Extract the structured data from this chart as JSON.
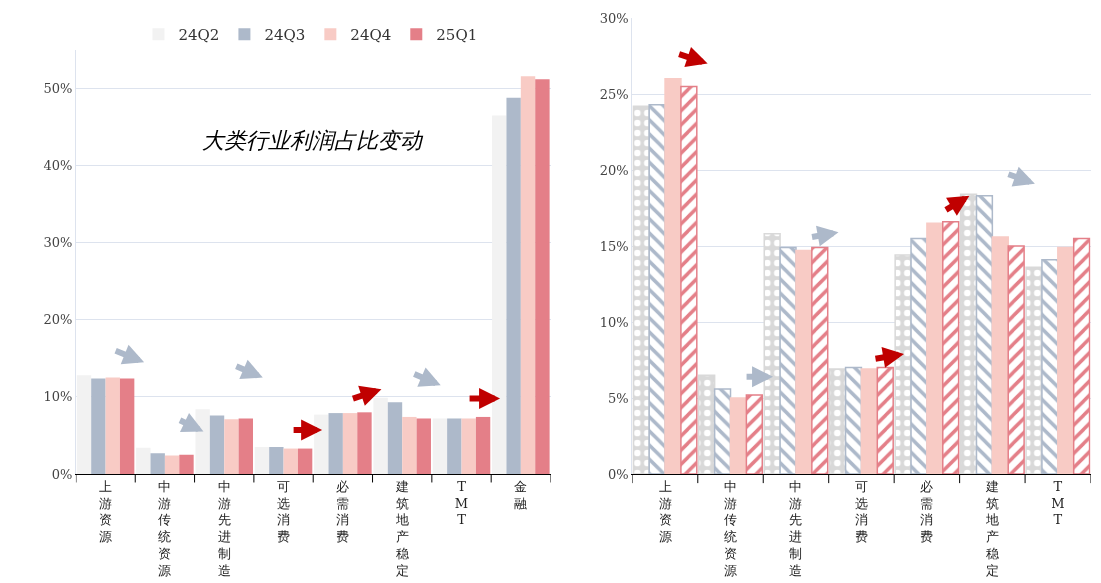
{
  "chart_data": [
    {
      "type": "bar",
      "title": "大类行业利润占比变动",
      "categories": [
        "上游资源",
        "中游传统资源",
        "中游先进制造",
        "可选消费",
        "必需消费",
        "建筑地产稳定",
        "TMT",
        "金融"
      ],
      "series": [
        {
          "name": "24Q2",
          "color": "#f2f2f2",
          "values": [
            12.8,
            3.4,
            8.4,
            3.5,
            7.7,
            9.9,
            7.2,
            46.5
          ]
        },
        {
          "name": "24Q3",
          "color": "#adb9ca",
          "values": [
            12.4,
            2.7,
            7.6,
            3.5,
            7.9,
            9.3,
            7.2,
            48.8
          ]
        },
        {
          "name": "24Q4",
          "color": "#f8cbc5",
          "values": [
            12.5,
            2.4,
            7.1,
            3.3,
            7.9,
            7.4,
            7.2,
            51.6
          ]
        },
        {
          "name": "25Q1",
          "color": "#e47f88",
          "values": [
            12.4,
            2.5,
            7.2,
            3.3,
            8.0,
            7.2,
            7.4,
            51.2
          ]
        }
      ],
      "ylim": [
        0,
        55
      ],
      "yticks": [
        {
          "value": 0,
          "label": "0%"
        },
        {
          "value": 10,
          "label": "10%"
        },
        {
          "value": 20,
          "label": "20%"
        },
        {
          "value": 30,
          "label": "30%"
        },
        {
          "value": 40,
          "label": "40%"
        },
        {
          "value": 50,
          "label": "50%"
        }
      ],
      "grid": "y",
      "legend": "top"
    },
    {
      "type": "bar",
      "categories": [
        "上游资源",
        "中游传统资源",
        "中游先进制造",
        "可选消费",
        "必需消费",
        "建筑地产稳定",
        "TMT"
      ],
      "series": [
        {
          "color": "#d9d9d9",
          "values": [
            24.2,
            6.5,
            15.8,
            6.9,
            14.4,
            18.4,
            13.6
          ]
        },
        {
          "color": "#adb9ca",
          "values": [
            24.3,
            5.6,
            14.9,
            7.0,
            15.5,
            18.3,
            14.1
          ]
        },
        {
          "color": "#f8cbc5",
          "values": [
            26.0,
            5.0,
            14.7,
            6.9,
            16.5,
            15.6,
            14.9
          ]
        },
        {
          "color": "#e47f88",
          "values": [
            25.5,
            5.2,
            14.9,
            7.0,
            16.6,
            15.0,
            15.5
          ]
        }
      ],
      "ylim": [
        0,
        30
      ],
      "yticks": [
        {
          "value": 0,
          "label": "0%"
        },
        {
          "value": 5,
          "label": "5%"
        },
        {
          "value": 10,
          "label": "10%"
        },
        {
          "value": 15,
          "label": "15%"
        },
        {
          "value": 20,
          "label": "20%"
        },
        {
          "value": 25,
          "label": "25%"
        },
        {
          "value": 30,
          "label": "30%"
        }
      ],
      "grid": "y"
    }
  ]
}
